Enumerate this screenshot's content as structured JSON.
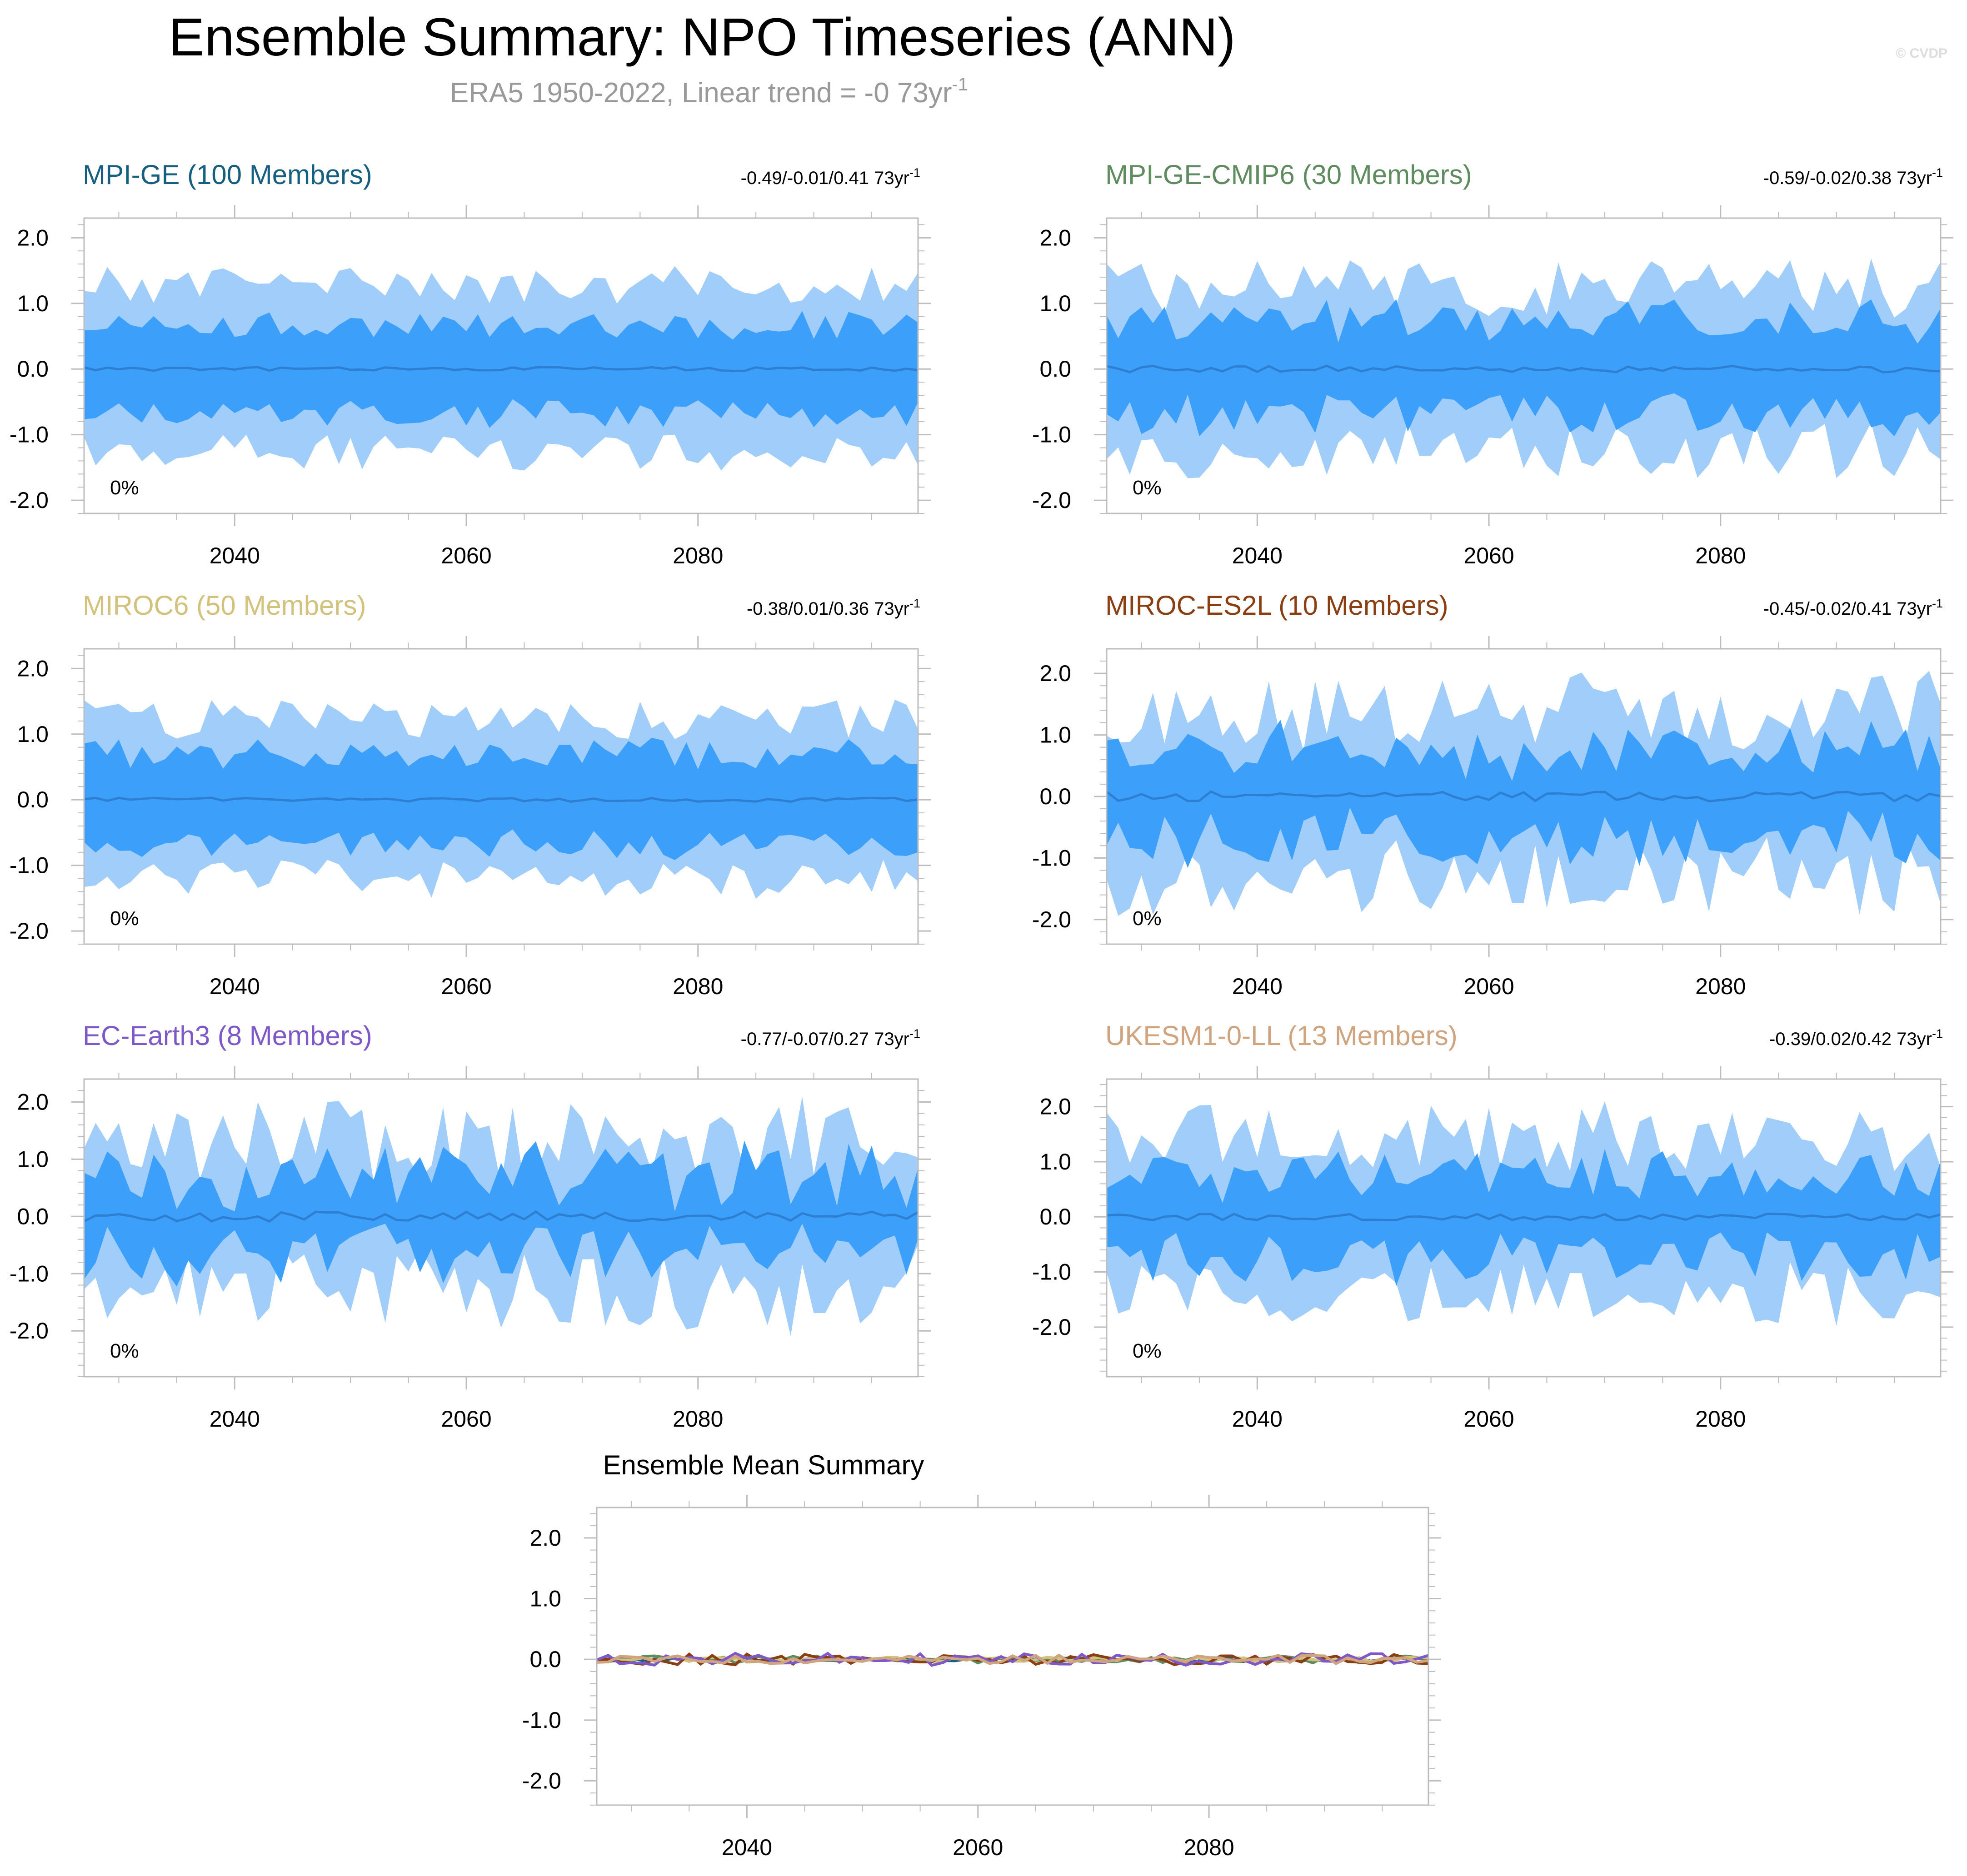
{
  "title": "Ensemble Summary: NPO Timeseries (ANN)",
  "subtitle_main": "ERA5 1950-2022, Linear trend = -0 73yr",
  "subtitle_sup": "-1",
  "credit": "© CVDP",
  "colors": {
    "band_outer": "#a0cdfa",
    "band_inner": "#3ca0fb",
    "mean_line": "#2e7fd1",
    "frame": "#bdbdbd"
  },
  "chart_data": [
    {
      "type": "area",
      "title": "MPI-GE (100 Members)",
      "title_color": "#175f80",
      "stat": "-0.49/-0.01/0.41 73yr",
      "stat_sup": "-1",
      "percent_label": "0%",
      "x_start": 2027,
      "x_end": 2099,
      "xlim": [
        2027,
        2099
      ],
      "ylim": [
        -2.2,
        2.3
      ],
      "xticks": [
        2040,
        2060,
        2080
      ],
      "xtick_labels": [
        "2040",
        "2060",
        "2080"
      ],
      "yticks": [
        -2,
        -1,
        0,
        1,
        2
      ],
      "ytick_labels": [
        "-2.0",
        "-1.0",
        "0.0",
        "1.0",
        "2.0"
      ],
      "seed": 11,
      "amp": 0.28,
      "outer_base": 1.28,
      "inner_base": 0.68,
      "mean_amp": 0.03
    },
    {
      "type": "area",
      "title": "MPI-GE-CMIP6 (30 Members)",
      "title_color": "#5f8c5f",
      "stat": "-0.59/-0.02/0.38 73yr",
      "stat_sup": "-1",
      "percent_label": "0%",
      "x_start": 2027,
      "x_end": 2099,
      "xlim": [
        2027,
        2099
      ],
      "ylim": [
        -2.2,
        2.3
      ],
      "xticks": [
        2040,
        2060,
        2080
      ],
      "xtick_labels": [
        "2040",
        "2060",
        "2080"
      ],
      "yticks": [
        -2,
        -1,
        0,
        1,
        2
      ],
      "ytick_labels": [
        "-2.0",
        "-1.0",
        "0.0",
        "1.0",
        "2.0"
      ],
      "seed": 23,
      "amp": 0.45,
      "outer_base": 1.25,
      "inner_base": 0.72,
      "mean_amp": 0.05
    },
    {
      "type": "area",
      "title": "MIROC6 (50 Members)",
      "title_color": "#d3c27c",
      "stat": "-0.38/0.01/0.36 73yr",
      "stat_sup": "-1",
      "percent_label": "0%",
      "x_start": 2027,
      "x_end": 2099,
      "xlim": [
        2027,
        2099
      ],
      "ylim": [
        -2.2,
        2.3
      ],
      "xticks": [
        2040,
        2060,
        2080
      ],
      "xtick_labels": [
        "2040",
        "2060",
        "2080"
      ],
      "yticks": [
        -2,
        -1,
        0,
        1,
        2
      ],
      "ytick_labels": [
        "-2.0",
        "-1.0",
        "0.0",
        "1.0",
        "2.0"
      ],
      "seed": 37,
      "amp": 0.3,
      "outer_base": 1.22,
      "inner_base": 0.7,
      "mean_amp": 0.03
    },
    {
      "type": "area",
      "title": "MIROC-ES2L (10 Members)",
      "title_color": "#8b3e12",
      "stat": "-0.45/-0.02/0.41 73yr",
      "stat_sup": "-1",
      "percent_label": "0%",
      "x_start": 2027,
      "x_end": 2099,
      "xlim": [
        2027,
        2099
      ],
      "ylim": [
        -2.4,
        2.4
      ],
      "xticks": [
        2040,
        2060,
        2080
      ],
      "xtick_labels": [
        "2040",
        "2060",
        "2080"
      ],
      "yticks": [
        -2,
        -1,
        0,
        1,
        2
      ],
      "ytick_labels": [
        "-2.0",
        "-1.0",
        "0.0",
        "1.0",
        "2.0"
      ],
      "seed": 41,
      "amp": 0.65,
      "outer_base": 1.35,
      "inner_base": 0.72,
      "mean_amp": 0.08
    },
    {
      "type": "area",
      "title": "EC-Earth3 (8 Members)",
      "title_color": "#7e57c9",
      "stat": "-0.77/-0.07/0.27 73yr",
      "stat_sup": "-1",
      "percent_label": "0%",
      "x_start": 2027,
      "x_end": 2099,
      "xlim": [
        2027,
        2099
      ],
      "ylim": [
        -2.8,
        2.4
      ],
      "xticks": [
        2040,
        2060,
        2080
      ],
      "xtick_labels": [
        "2040",
        "2060",
        "2080"
      ],
      "yticks": [
        -2,
        -1,
        0,
        1,
        2
      ],
      "ytick_labels": [
        "-2.0",
        "-1.0",
        "0.0",
        "1.0",
        "2.0"
      ],
      "seed": 59,
      "amp": 0.75,
      "outer_base": 1.3,
      "inner_base": 0.68,
      "mean_amp": 0.09
    },
    {
      "type": "area",
      "title": "UKESM1-0-LL (13 Members)",
      "title_color": "#cfa47e",
      "stat": "-0.39/0.02/0.42 73yr",
      "stat_sup": "-1",
      "percent_label": "0%",
      "x_start": 2027,
      "x_end": 2099,
      "xlim": [
        2027,
        2099
      ],
      "ylim": [
        -2.9,
        2.5
      ],
      "xticks": [
        2040,
        2060,
        2080
      ],
      "xtick_labels": [
        "2040",
        "2060",
        "2080"
      ],
      "yticks": [
        -2,
        -1,
        0,
        1,
        2
      ],
      "ytick_labels": [
        "-2.0",
        "-1.0",
        "0.0",
        "1.0",
        "2.0"
      ],
      "seed": 67,
      "amp": 0.6,
      "outer_base": 1.45,
      "inner_base": 0.75,
      "mean_amp": 0.06
    },
    {
      "type": "line",
      "title": "Ensemble Mean Summary",
      "title_color": "#000000",
      "x_start": 2027,
      "x_end": 2099,
      "xlim": [
        2027,
        2099
      ],
      "ylim": [
        -2.4,
        2.5
      ],
      "xticks": [
        2040,
        2060,
        2080
      ],
      "xtick_labels": [
        "2040",
        "2060",
        "2080"
      ],
      "yticks": [
        -2,
        -1,
        0,
        1,
        2
      ],
      "ytick_labels": [
        "-2.0",
        "-1.0",
        "0.0",
        "1.0",
        "2.0"
      ],
      "series": [
        {
          "name": "MPI-GE",
          "color": "#175f80",
          "seed": 11,
          "amp": 0.03
        },
        {
          "name": "MPI-GE-CMIP6",
          "color": "#5f8c5f",
          "seed": 23,
          "amp": 0.06
        },
        {
          "name": "MIROC6",
          "color": "#d3c27c",
          "seed": 37,
          "amp": 0.04
        },
        {
          "name": "MIROC-ES2L",
          "color": "#8b3e12",
          "seed": 41,
          "amp": 0.09
        },
        {
          "name": "EC-Earth3",
          "color": "#7e57c9",
          "seed": 59,
          "amp": 0.1
        },
        {
          "name": "UKESM1-0-LL",
          "color": "#cfa47e",
          "seed": 67,
          "amp": 0.07
        }
      ]
    }
  ]
}
